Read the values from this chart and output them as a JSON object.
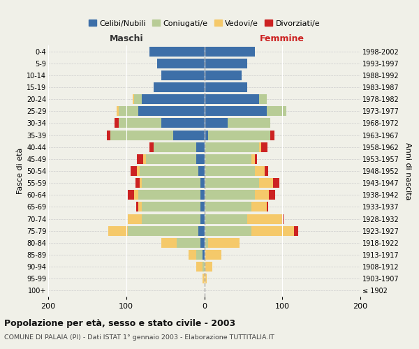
{
  "age_groups": [
    "100+",
    "95-99",
    "90-94",
    "85-89",
    "80-84",
    "75-79",
    "70-74",
    "65-69",
    "60-64",
    "55-59",
    "50-54",
    "45-49",
    "40-44",
    "35-39",
    "30-34",
    "25-29",
    "20-24",
    "15-19",
    "10-14",
    "5-9",
    "0-4"
  ],
  "birth_years": [
    "≤ 1902",
    "1903-1907",
    "1908-1912",
    "1913-1917",
    "1918-1922",
    "1923-1927",
    "1928-1932",
    "1933-1937",
    "1938-1942",
    "1943-1947",
    "1948-1952",
    "1953-1957",
    "1958-1962",
    "1963-1967",
    "1968-1972",
    "1973-1977",
    "1978-1982",
    "1983-1987",
    "1988-1992",
    "1993-1997",
    "1998-2002"
  ],
  "maschi": {
    "celibi": [
      0,
      0,
      0,
      2,
      5,
      8,
      5,
      5,
      5,
      5,
      8,
      10,
      10,
      40,
      55,
      85,
      80,
      65,
      55,
      60,
      70
    ],
    "coniugati": [
      0,
      0,
      2,
      8,
      30,
      90,
      75,
      75,
      80,
      75,
      75,
      65,
      55,
      80,
      55,
      25,
      10,
      0,
      0,
      0,
      0
    ],
    "vedovi": [
      0,
      2,
      8,
      10,
      20,
      25,
      18,
      5,
      5,
      3,
      3,
      3,
      0,
      0,
      0,
      2,
      2,
      0,
      0,
      0,
      0
    ],
    "divorziati": [
      0,
      0,
      0,
      0,
      0,
      0,
      0,
      2,
      8,
      5,
      8,
      8,
      5,
      5,
      5,
      0,
      0,
      0,
      0,
      0,
      0
    ]
  },
  "femmine": {
    "nubili": [
      0,
      0,
      0,
      0,
      0,
      0,
      0,
      0,
      0,
      0,
      0,
      0,
      0,
      5,
      30,
      80,
      70,
      55,
      48,
      55,
      65
    ],
    "coniugate": [
      0,
      0,
      0,
      0,
      5,
      60,
      55,
      60,
      65,
      70,
      65,
      60,
      70,
      80,
      55,
      25,
      10,
      0,
      0,
      0,
      0
    ],
    "vedove": [
      0,
      3,
      10,
      22,
      40,
      55,
      45,
      20,
      18,
      18,
      12,
      5,
      3,
      0,
      0,
      0,
      0,
      0,
      0,
      0,
      0
    ],
    "divorziate": [
      0,
      0,
      0,
      0,
      0,
      5,
      2,
      2,
      8,
      8,
      5,
      3,
      8,
      5,
      0,
      0,
      0,
      0,
      0,
      0,
      0
    ]
  },
  "colors": {
    "celibi": "#3d6fa8",
    "coniugati": "#b8cc96",
    "vedovi": "#f5c96a",
    "divorziati": "#cc2222"
  },
  "xlim": 200,
  "title": "Popolazione per età, sesso e stato civile - 2003",
  "subtitle": "COMUNE DI PALAIA (PI) - Dati ISTAT 1° gennaio 2003 - Elaborazione TUTTITALIA.IT",
  "xlabel_left": "Maschi",
  "xlabel_right": "Femmine",
  "ylabel_left": "Fasce di età",
  "ylabel_right": "Anni di nascita",
  "legend_labels": [
    "Celibi/Nubili",
    "Coniugati/e",
    "Vedovi/e",
    "Divorziati/e"
  ],
  "bg_color": "#f0f0e8"
}
